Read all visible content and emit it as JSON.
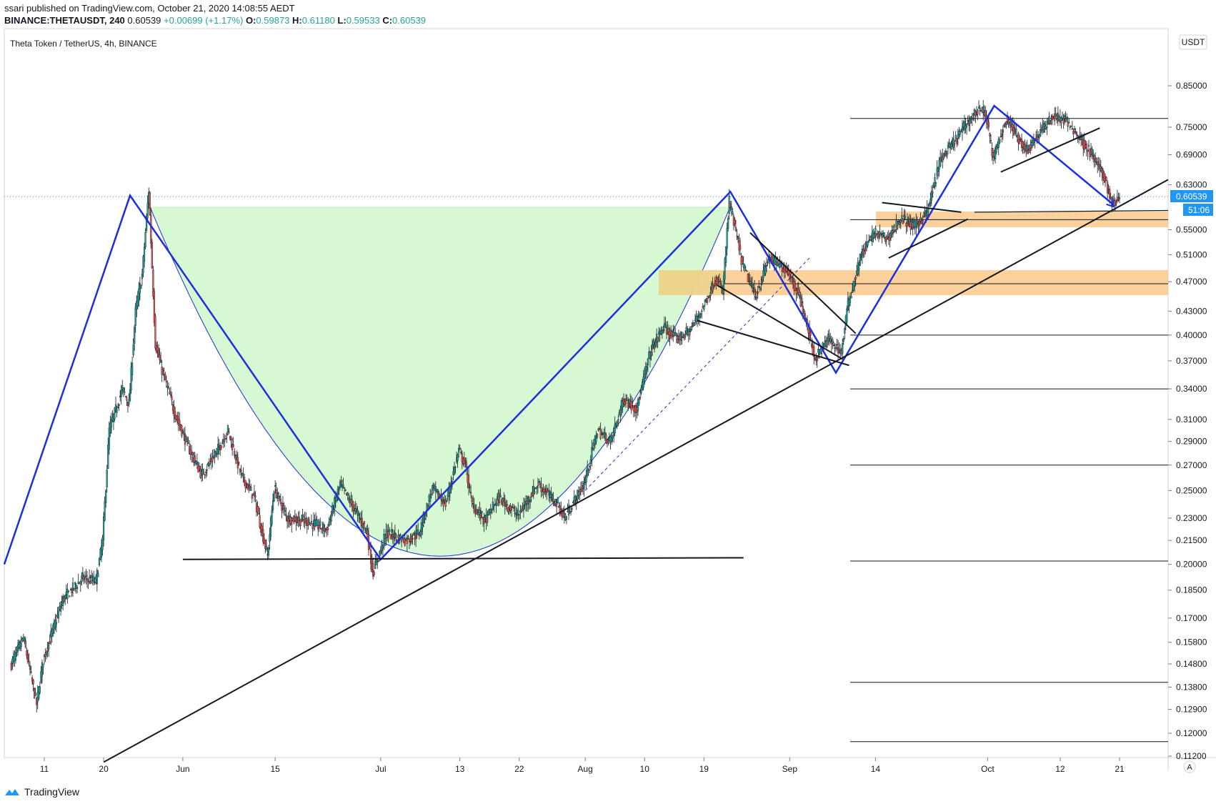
{
  "header": {
    "published_line": "ssari published on TradingView.com, October 21, 2020 14:08:55 AEDT",
    "symbol": "BINANCE:THETAUSDT, 240",
    "last": "0.60539",
    "change": "+0.00699 (+1.17%)",
    "o_label": "O:",
    "o_value": "0.59873",
    "h_label": "H:",
    "h_value": "0.61180",
    "l_label": "L:",
    "l_value": "0.59533",
    "c_label": "C:",
    "c_value": "0.60539"
  },
  "footer": {
    "brand": "TradingView"
  },
  "colors": {
    "up": "#26a69a",
    "down": "#ef5350",
    "pattern_blue": "#1b2ee0",
    "cup_fill": "#ccf7c8",
    "zone_fill": "#fcc98a",
    "price_tag": "#2196f3"
  },
  "chart_data": {
    "type": "candlestick",
    "title": "Theta Token / TetherUS, 4h, BINANCE",
    "currency_button": "USDT",
    "last_price_label": "0.60539",
    "countdown_label": "51:06",
    "y_scale": "log",
    "y_ticks": [
      "0.85000",
      "0.75000",
      "0.69000",
      "0.63000",
      "0.55000",
      "0.51000",
      "0.47000",
      "0.43000",
      "0.40000",
      "0.37000",
      "0.34000",
      "0.31000",
      "0.29000",
      "0.27000",
      "0.25000",
      "0.23000",
      "0.21500",
      "0.20000",
      "0.18500",
      "0.17000",
      "0.15800",
      "0.14800",
      "0.13800",
      "0.12900",
      "0.12000",
      "0.11200"
    ],
    "x_ticks": [
      "11",
      "20",
      "Jun",
      "15",
      "Jul",
      "13",
      "22",
      "Aug",
      "10",
      "19",
      "Sep",
      "14",
      "Oct",
      "12",
      "21"
    ],
    "axis_corner": "A",
    "price_path": [
      [
        "2020-05-06",
        0.147
      ],
      [
        "2020-05-08",
        0.16
      ],
      [
        "2020-05-10",
        0.131
      ],
      [
        "2020-05-11",
        0.15
      ],
      [
        "2020-05-14",
        0.18
      ],
      [
        "2020-05-17",
        0.192
      ],
      [
        "2020-05-19",
        0.19
      ],
      [
        "2020-05-20",
        0.215
      ],
      [
        "2020-05-21",
        0.3
      ],
      [
        "2020-05-23",
        0.34
      ],
      [
        "2020-05-24",
        0.325
      ],
      [
        "2020-05-25",
        0.43
      ],
      [
        "2020-05-26",
        0.48
      ],
      [
        "2020-05-27",
        0.62
      ],
      [
        "2020-05-28",
        0.39
      ],
      [
        "2020-05-29",
        0.36
      ],
      [
        "2020-05-31",
        0.315
      ],
      [
        "2020-06-02",
        0.285
      ],
      [
        "2020-06-04",
        0.262
      ],
      [
        "2020-06-06",
        0.278
      ],
      [
        "2020-06-08",
        0.3
      ],
      [
        "2020-06-10",
        0.262
      ],
      [
        "2020-06-12",
        0.245
      ],
      [
        "2020-06-14",
        0.205
      ],
      [
        "2020-06-15",
        0.252
      ],
      [
        "2020-06-17",
        0.23
      ],
      [
        "2020-06-20",
        0.228
      ],
      [
        "2020-06-23",
        0.222
      ],
      [
        "2020-06-25",
        0.255
      ],
      [
        "2020-06-27",
        0.238
      ],
      [
        "2020-06-29",
        0.222
      ],
      [
        "2020-06-30",
        0.195
      ],
      [
        "2020-07-02",
        0.22
      ],
      [
        "2020-07-05",
        0.215
      ],
      [
        "2020-07-07",
        0.22
      ],
      [
        "2020-07-09",
        0.252
      ],
      [
        "2020-07-11",
        0.24
      ],
      [
        "2020-07-13",
        0.282
      ],
      [
        "2020-07-14",
        0.27
      ],
      [
        "2020-07-15",
        0.24
      ],
      [
        "2020-07-17",
        0.228
      ],
      [
        "2020-07-19",
        0.245
      ],
      [
        "2020-07-22",
        0.232
      ],
      [
        "2020-07-25",
        0.255
      ],
      [
        "2020-07-28",
        0.24
      ],
      [
        "2020-07-29",
        0.23
      ],
      [
        "2020-08-01",
        0.255
      ],
      [
        "2020-08-03",
        0.3
      ],
      [
        "2020-08-05",
        0.29
      ],
      [
        "2020-08-07",
        0.33
      ],
      [
        "2020-08-09",
        0.32
      ],
      [
        "2020-08-11",
        0.38
      ],
      [
        "2020-08-13",
        0.41
      ],
      [
        "2020-08-15",
        0.395
      ],
      [
        "2020-08-17",
        0.405
      ],
      [
        "2020-08-19",
        0.435
      ],
      [
        "2020-08-21",
        0.475
      ],
      [
        "2020-08-22",
        0.455
      ],
      [
        "2020-08-23",
        0.6
      ],
      [
        "2020-08-25",
        0.495
      ],
      [
        "2020-08-27",
        0.45
      ],
      [
        "2020-08-29",
        0.505
      ],
      [
        "2020-09-01",
        0.485
      ],
      [
        "2020-09-03",
        0.44
      ],
      [
        "2020-09-05",
        0.372
      ],
      [
        "2020-09-07",
        0.395
      ],
      [
        "2020-09-09",
        0.38
      ],
      [
        "2020-09-10",
        0.44
      ],
      [
        "2020-09-12",
        0.51
      ],
      [
        "2020-09-14",
        0.545
      ],
      [
        "2020-09-16",
        0.535
      ],
      [
        "2020-09-18",
        0.57
      ],
      [
        "2020-09-20",
        0.555
      ],
      [
        "2020-09-22",
        0.58
      ],
      [
        "2020-09-24",
        0.68
      ],
      [
        "2020-09-26",
        0.715
      ],
      [
        "2020-09-28",
        0.76
      ],
      [
        "2020-09-30",
        0.795
      ],
      [
        "2020-10-01",
        0.775
      ],
      [
        "2020-10-02",
        0.68
      ],
      [
        "2020-10-04",
        0.77
      ],
      [
        "2020-10-07",
        0.7
      ],
      [
        "2020-10-09",
        0.735
      ],
      [
        "2020-10-11",
        0.775
      ],
      [
        "2020-10-13",
        0.765
      ],
      [
        "2020-10-15",
        0.73
      ],
      [
        "2020-10-17",
        0.69
      ],
      [
        "2020-10-19",
        0.64
      ],
      [
        "2020-10-20",
        0.595
      ],
      [
        "2020-10-21",
        0.605
      ]
    ]
  }
}
